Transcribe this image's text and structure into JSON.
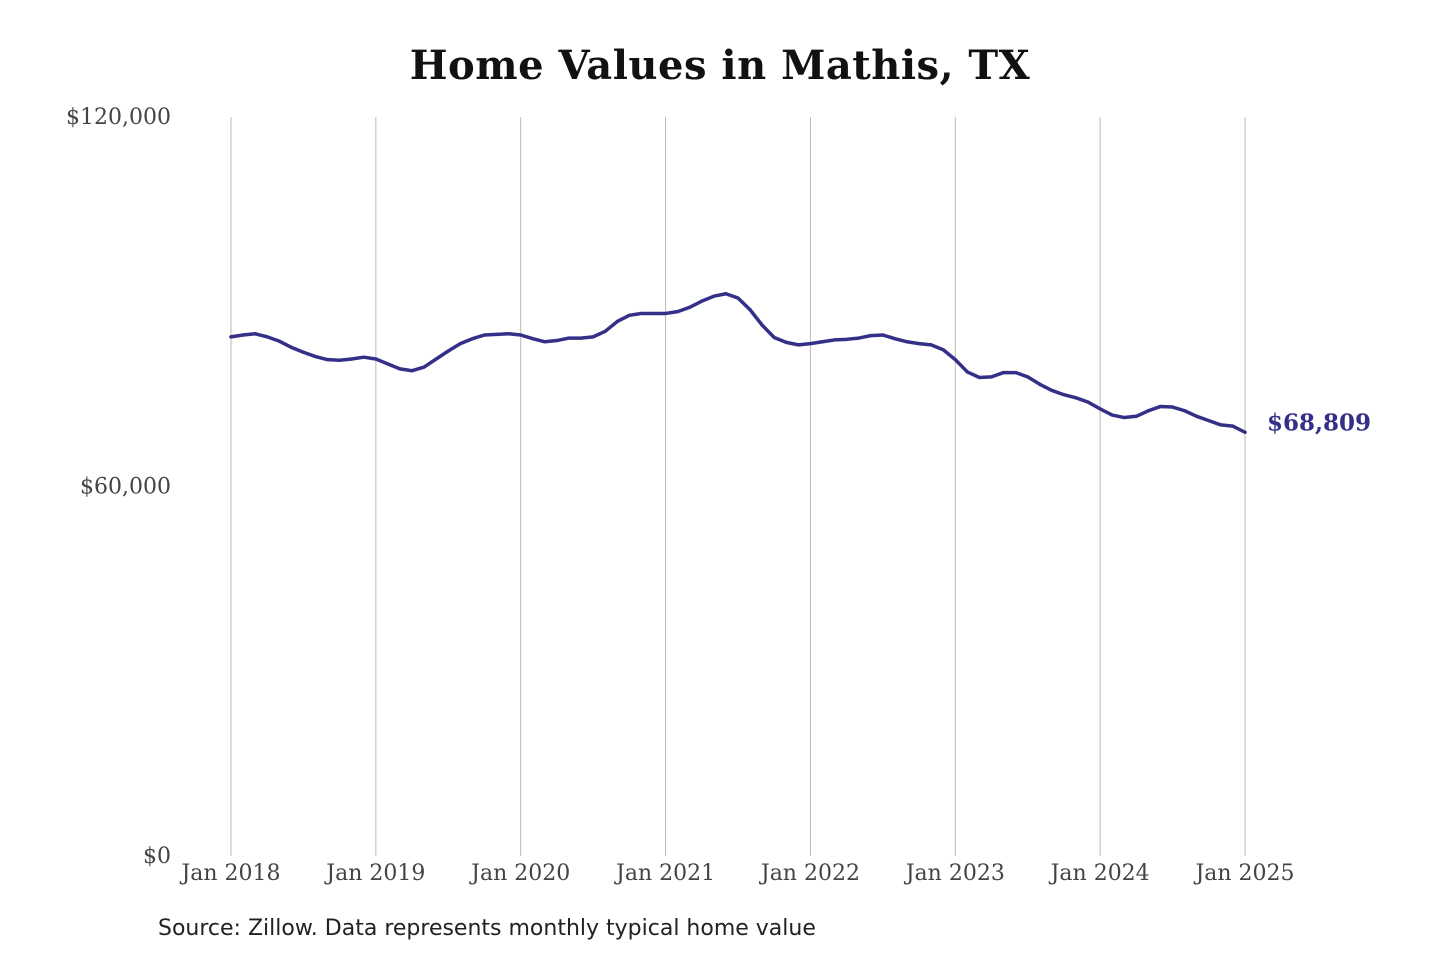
{
  "chart_data": {
    "type": "line",
    "title": "Home Values in Mathis, TX",
    "xlabel": "",
    "ylabel": "",
    "source": "Source: Zillow. Data represents monthly typical home value",
    "color": "#343088",
    "grid": "vertical",
    "ylim": [
      0,
      120000
    ],
    "y_ticks": [
      {
        "value": 0,
        "label": "$0"
      },
      {
        "value": 60000,
        "label": "$60,000"
      },
      {
        "value": 120000,
        "label": "$120,000"
      }
    ],
    "x_ticks": [
      {
        "value": "2018-01",
        "label": "Jan 2018"
      },
      {
        "value": "2019-01",
        "label": "Jan 2019"
      },
      {
        "value": "2020-01",
        "label": "Jan 2020"
      },
      {
        "value": "2021-01",
        "label": "Jan 2021"
      },
      {
        "value": "2022-01",
        "label": "Jan 2022"
      },
      {
        "value": "2023-01",
        "label": "Jan 2023"
      },
      {
        "value": "2024-01",
        "label": "Jan 2024"
      },
      {
        "value": "2025-01",
        "label": "Jan 2025"
      }
    ],
    "end_label": "$68,809",
    "series": [
      {
        "x": [
          "2018-01",
          "2018-02",
          "2018-03",
          "2018-04",
          "2018-05",
          "2018-06",
          "2018-07",
          "2018-08",
          "2018-09",
          "2018-10",
          "2018-11",
          "2018-12",
          "2019-01",
          "2019-02",
          "2019-03",
          "2019-04",
          "2019-05",
          "2019-06",
          "2019-07",
          "2019-08",
          "2019-09",
          "2019-10",
          "2019-11",
          "2019-12",
          "2020-01",
          "2020-02",
          "2020-03",
          "2020-04",
          "2020-05",
          "2020-06",
          "2020-07",
          "2020-08",
          "2020-09",
          "2020-10",
          "2020-11",
          "2020-12",
          "2021-01",
          "2021-02",
          "2021-03",
          "2021-04",
          "2021-05",
          "2021-06",
          "2021-07",
          "2021-08",
          "2021-09",
          "2021-10",
          "2021-11",
          "2021-12",
          "2022-01",
          "2022-02",
          "2022-03",
          "2022-04",
          "2022-05",
          "2022-06",
          "2022-07",
          "2022-08",
          "2022-09",
          "2022-10",
          "2022-11",
          "2022-12",
          "2023-01",
          "2023-02",
          "2023-03",
          "2023-04",
          "2023-05",
          "2023-06",
          "2023-07",
          "2023-08",
          "2023-09",
          "2023-10",
          "2023-11",
          "2023-12",
          "2024-01",
          "2024-02",
          "2024-03",
          "2024-04",
          "2024-05",
          "2024-06",
          "2024-07",
          "2024-08",
          "2024-09",
          "2024-10",
          "2024-11",
          "2024-12",
          "2025-01"
        ],
        "values": [
          84300,
          84600,
          84800,
          84300,
          83600,
          82600,
          81800,
          81100,
          80600,
          80500,
          80700,
          81000,
          80700,
          79900,
          79100,
          78800,
          79400,
          80700,
          82000,
          83200,
          84000,
          84600,
          84700,
          84800,
          84600,
          84000,
          83500,
          83700,
          84100,
          84100,
          84300,
          85200,
          86800,
          87800,
          88100,
          88100,
          88100,
          88400,
          89100,
          90100,
          90900,
          91300,
          90600,
          88700,
          86200,
          84200,
          83400,
          83000,
          83200,
          83500,
          83800,
          83900,
          84100,
          84500,
          84600,
          84000,
          83500,
          83200,
          83000,
          82200,
          80600,
          78600,
          77700,
          77800,
          78500,
          78500,
          77800,
          76600,
          75600,
          74900,
          74400,
          73700,
          72600,
          71600,
          71200,
          71400,
          72300,
          73000,
          72900,
          72300,
          71400,
          70700,
          70000,
          69800,
          68809
        ]
      }
    ]
  }
}
